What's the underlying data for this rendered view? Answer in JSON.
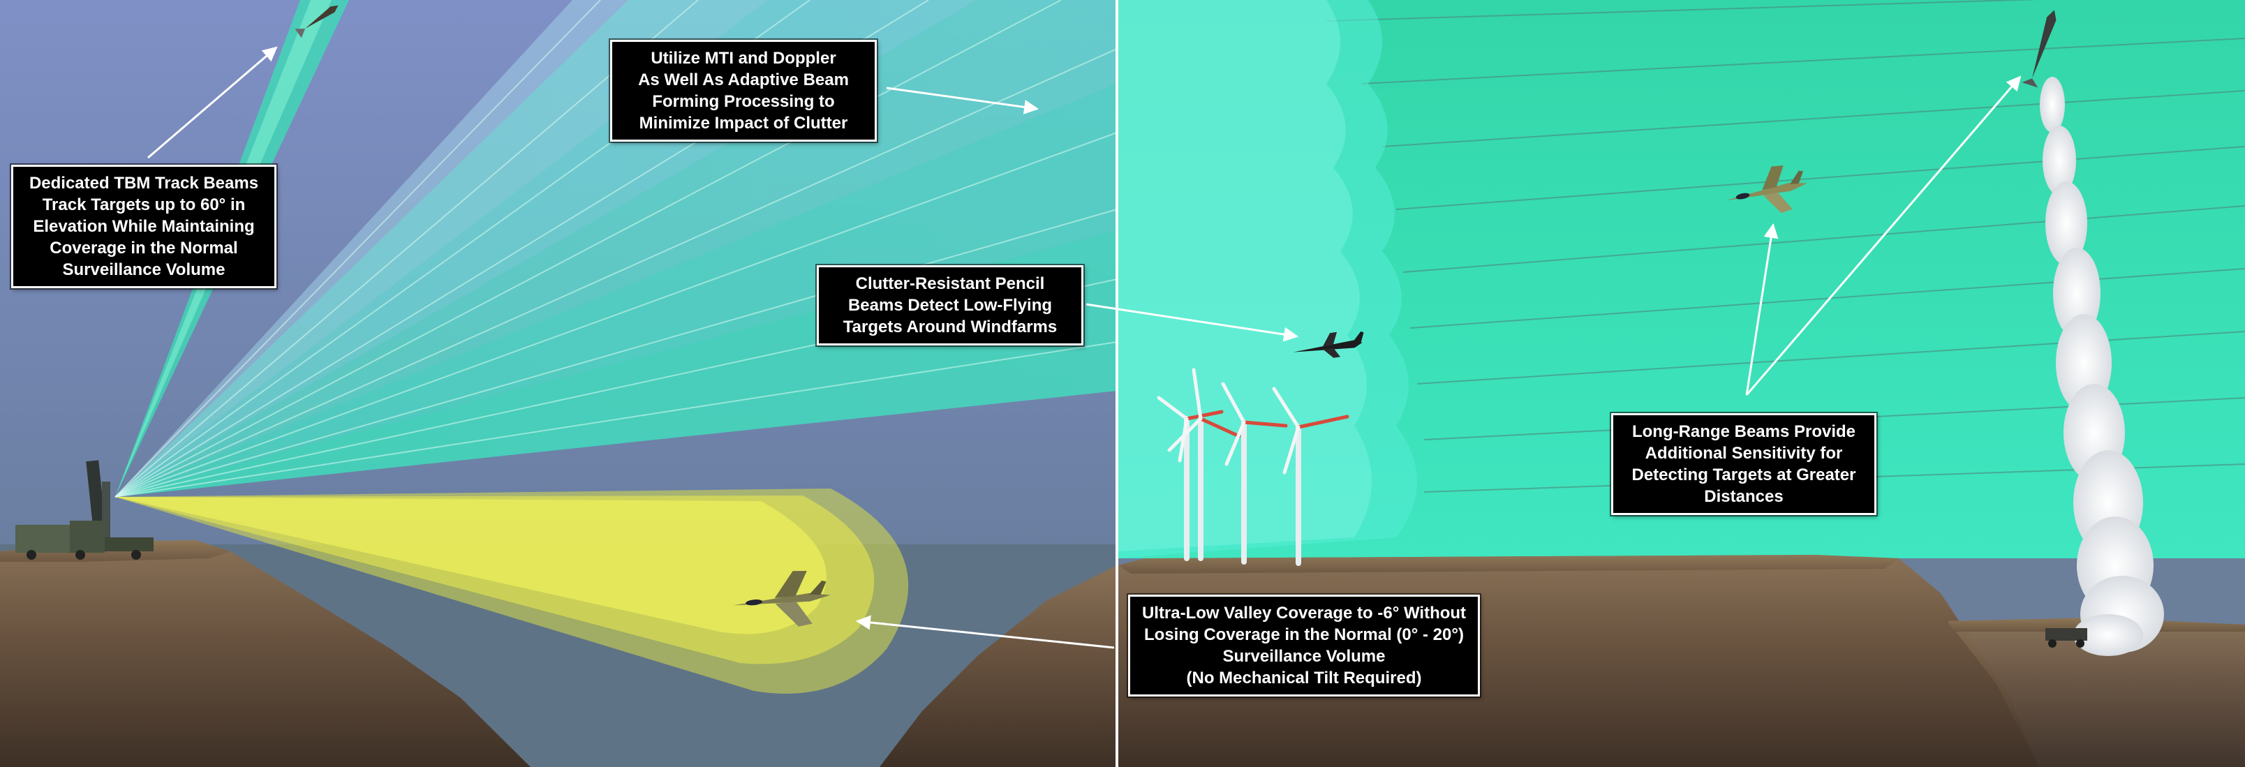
{
  "colors": {
    "sky_top": "#7d8fc3",
    "sky_bottom": "#6d7f9f",
    "surveillance_beam": "#3fe8c4",
    "upper_beam": "#9fdcec",
    "valley_beam": "#e8ea4a",
    "terrain": "#6f5a45",
    "callout_background": "#000000",
    "callout_text": "#ffffff",
    "leader_line": "#ffffff"
  },
  "callouts": {
    "tbm_track": "Dedicated TBM Track Beams\nTrack Targets up to 60° in\nElevation While Maintaining\nCoverage in the Normal\nSurveillance Volume",
    "mti_doppler": "Utilize MTI and Doppler\nAs Well As Adaptive Beam\nForming Processing to\nMinimize Impact of Clutter",
    "pencil_beams": "Clutter-Resistant Pencil\nBeams Detect Low-Flying\nTargets Around Windfarms",
    "long_range": "Long-Range Beams Provide\nAdditional Sensitivity for\nDetecting Targets at Greater\nDistances",
    "valley_coverage": "Ultra-Low Valley Coverage to -6° Without\nLosing Coverage in the Normal (0° - 20°)\nSurveillance Volume\n(No Mechanical Tilt Required)"
  },
  "icons": {
    "radar": "radar-array-icon",
    "fighter_jet": "fighter-jet-icon",
    "small_aircraft": "small-aircraft-icon",
    "ballistic_missile": "ballistic-missile-icon",
    "wind_turbine": "wind-turbine-icon",
    "launcher_vehicle": "launcher-vehicle-icon"
  }
}
